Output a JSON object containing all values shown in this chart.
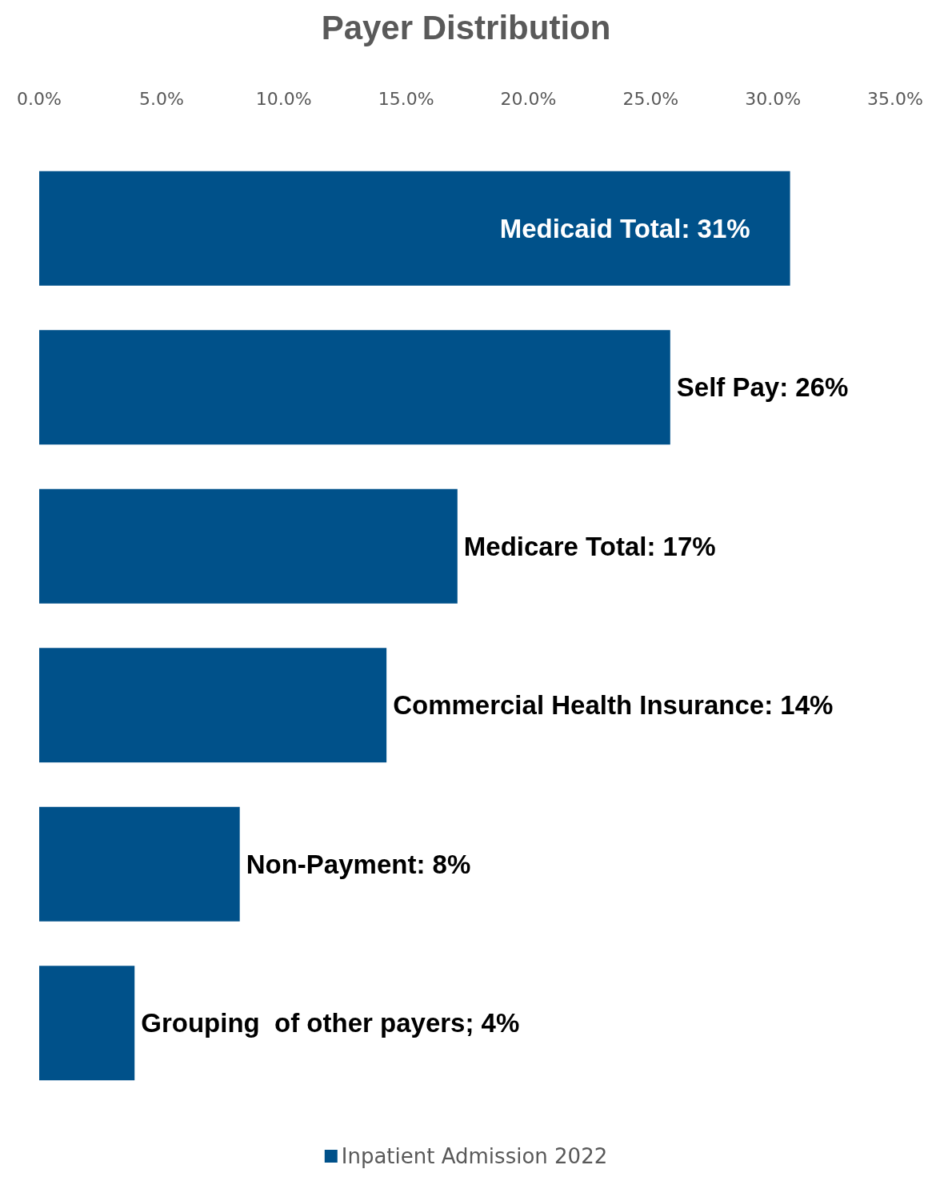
{
  "chart_data": {
    "type": "bar",
    "orientation": "horizontal",
    "title": "Payer Distribution",
    "categories": [
      null,
      null,
      null,
      null,
      null,
      null
    ],
    "series": [
      {
        "name": "Inpatient Admission 2022",
        "color": "#00518a",
        "values": [
          30.7,
          25.8,
          17.1,
          14.2,
          8.2,
          3.9
        ],
        "value_labels": [
          "Medicaid Total: 31%",
          "Self Pay: 26%",
          "Medicare Total: 17%",
          "Commercial Health Insurance: 14%",
          "Non-Payment: 8%",
          "Grouping  of other payers; 4%"
        ]
      }
    ],
    "xlim": [
      0,
      35
    ],
    "xticks": [
      {
        "value": 0,
        "label": "0.0%"
      },
      {
        "value": 5,
        "label": "5.0%"
      },
      {
        "value": 10,
        "label": "10.0%"
      },
      {
        "value": 15,
        "label": "15.0%"
      },
      {
        "value": 20,
        "label": "20.0%"
      },
      {
        "value": 25,
        "label": "25.0%"
      },
      {
        "value": 30,
        "label": "30.0%"
      },
      {
        "value": 35,
        "label": "35.0%"
      }
    ],
    "grid": false,
    "legend": "bottom"
  }
}
